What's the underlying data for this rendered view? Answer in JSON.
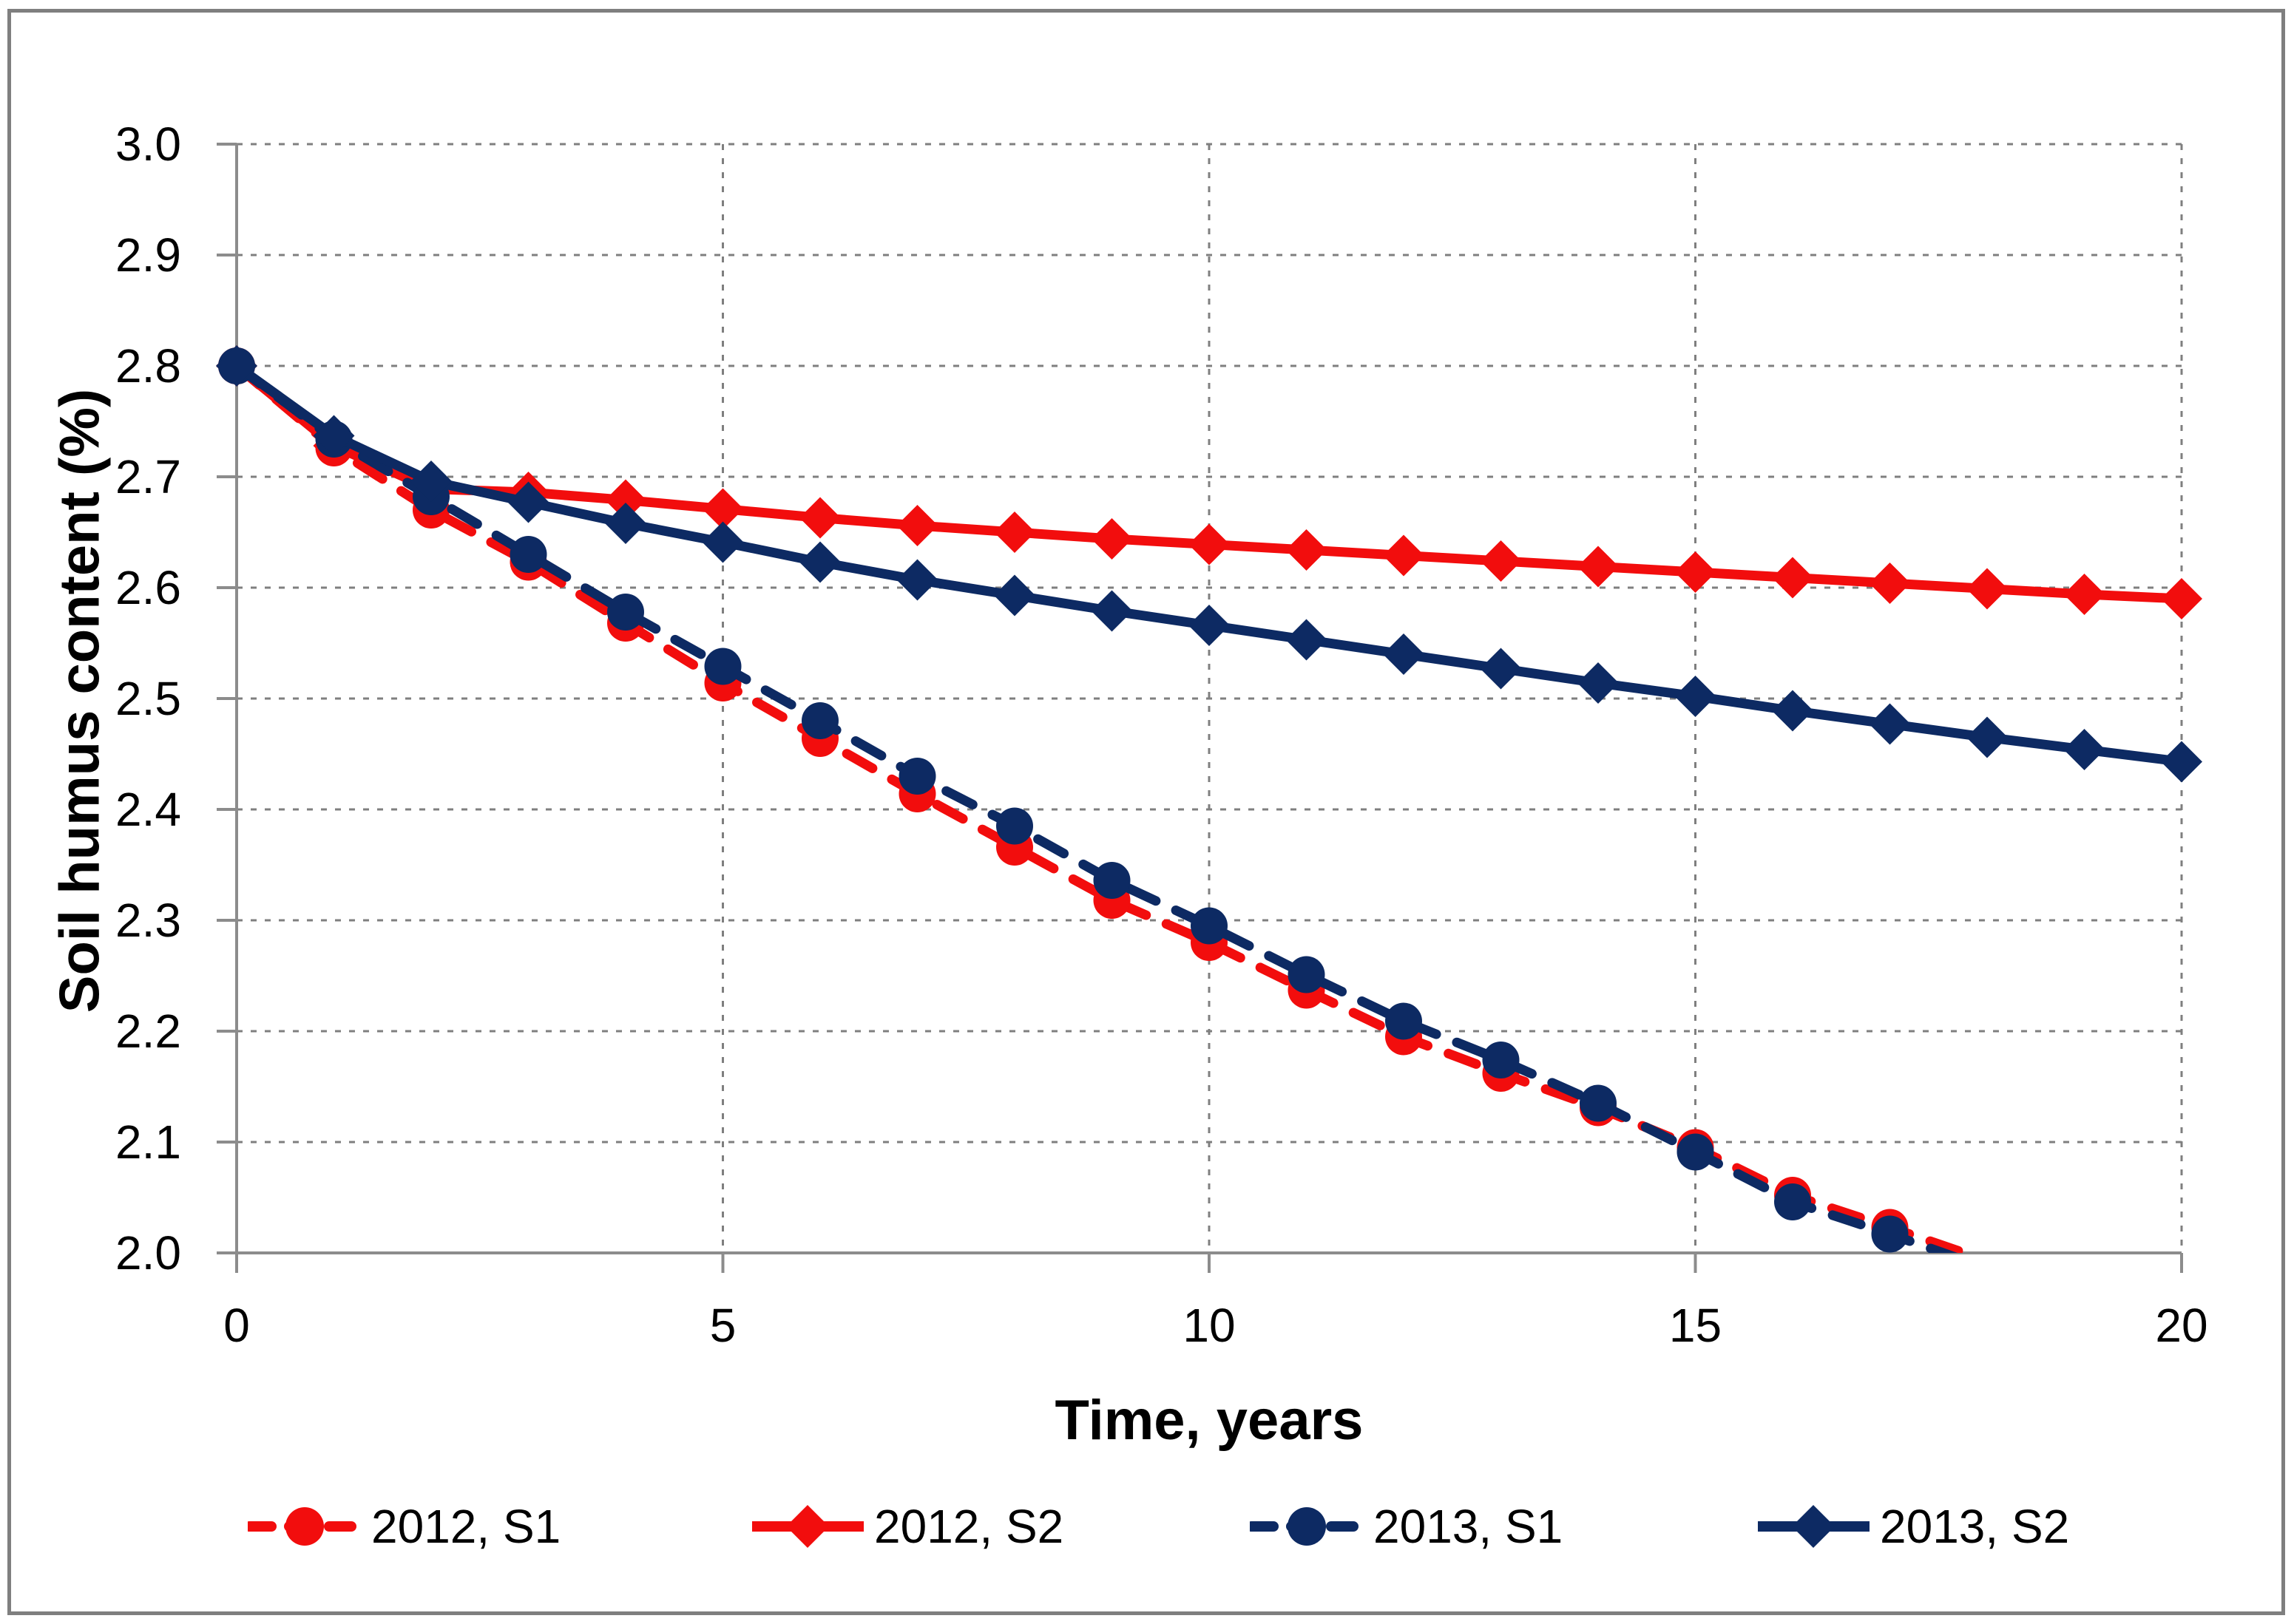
{
  "chart_data": {
    "type": "line",
    "title": "",
    "xlabel": "Time, years",
    "ylabel": "Soil humus content (%)",
    "xlim": [
      0,
      20
    ],
    "ylim": [
      2.0,
      3.0
    ],
    "x_tick_labels": [
      "0",
      "5",
      "10",
      "15",
      "20"
    ],
    "x_tick_values": [
      0,
      5,
      10,
      15,
      20
    ],
    "y_tick_labels": [
      "3.0",
      "2.9",
      "2.8",
      "2.7",
      "2.6",
      "2.5",
      "2.4",
      "2.3",
      "2.2",
      "2.1",
      "2.0"
    ],
    "y_tick_values": [
      3.0,
      2.9,
      2.8,
      2.7,
      2.6,
      2.5,
      2.4,
      2.3,
      2.2,
      2.1,
      2.0
    ],
    "grid": "dotted",
    "legend_position": "bottom",
    "x": [
      0,
      1,
      2,
      3,
      4,
      5,
      6,
      7,
      8,
      9,
      10,
      11,
      12,
      13,
      14,
      15,
      16,
      17,
      18,
      19,
      20
    ],
    "series": [
      {
        "name": "2012, S1",
        "color": "#f20d0d",
        "line": "dashed",
        "marker": "circle",
        "values": [
          2.8,
          2.726,
          2.67,
          2.623,
          2.568,
          2.514,
          2.464,
          2.414,
          2.366,
          2.318,
          2.28,
          2.237,
          2.195,
          2.162,
          2.131,
          2.095,
          2.052,
          2.023,
          1.993,
          null,
          null
        ]
      },
      {
        "name": "2012, S2",
        "color": "#f20d0d",
        "line": "solid",
        "marker": "diamond",
        "values": [
          2.8,
          2.728,
          2.689,
          2.686,
          2.679,
          2.671,
          2.663,
          2.656,
          2.65,
          2.644,
          2.639,
          2.634,
          2.629,
          2.624,
          2.619,
          2.614,
          2.609,
          2.604,
          2.599,
          2.594,
          2.59
        ]
      },
      {
        "name": "2013, S1",
        "color": "#0d2a63",
        "line": "dashed",
        "marker": "circle",
        "values": [
          2.8,
          2.734,
          2.682,
          2.63,
          2.578,
          2.529,
          2.48,
          2.43,
          2.385,
          2.336,
          2.295,
          2.251,
          2.209,
          2.174,
          2.135,
          2.091,
          2.046,
          2.017,
          1.986,
          null,
          null
        ]
      },
      {
        "name": "2013, S2",
        "color": "#0d2a63",
        "line": "solid",
        "marker": "diamond",
        "values": [
          2.8,
          2.737,
          2.696,
          2.677,
          2.658,
          2.641,
          2.623,
          2.607,
          2.593,
          2.579,
          2.566,
          2.553,
          2.54,
          2.527,
          2.514,
          2.502,
          2.489,
          2.477,
          2.465,
          2.454,
          2.443
        ]
      }
    ],
    "colors": {
      "red_series": "#f20d0d",
      "navy_series": "#0d2a63",
      "gridline": "#7f7f7f",
      "axis": "#8c8c8c",
      "outer_border": "#7f7f7f",
      "background": "#ffffff",
      "text": "#000000"
    }
  }
}
